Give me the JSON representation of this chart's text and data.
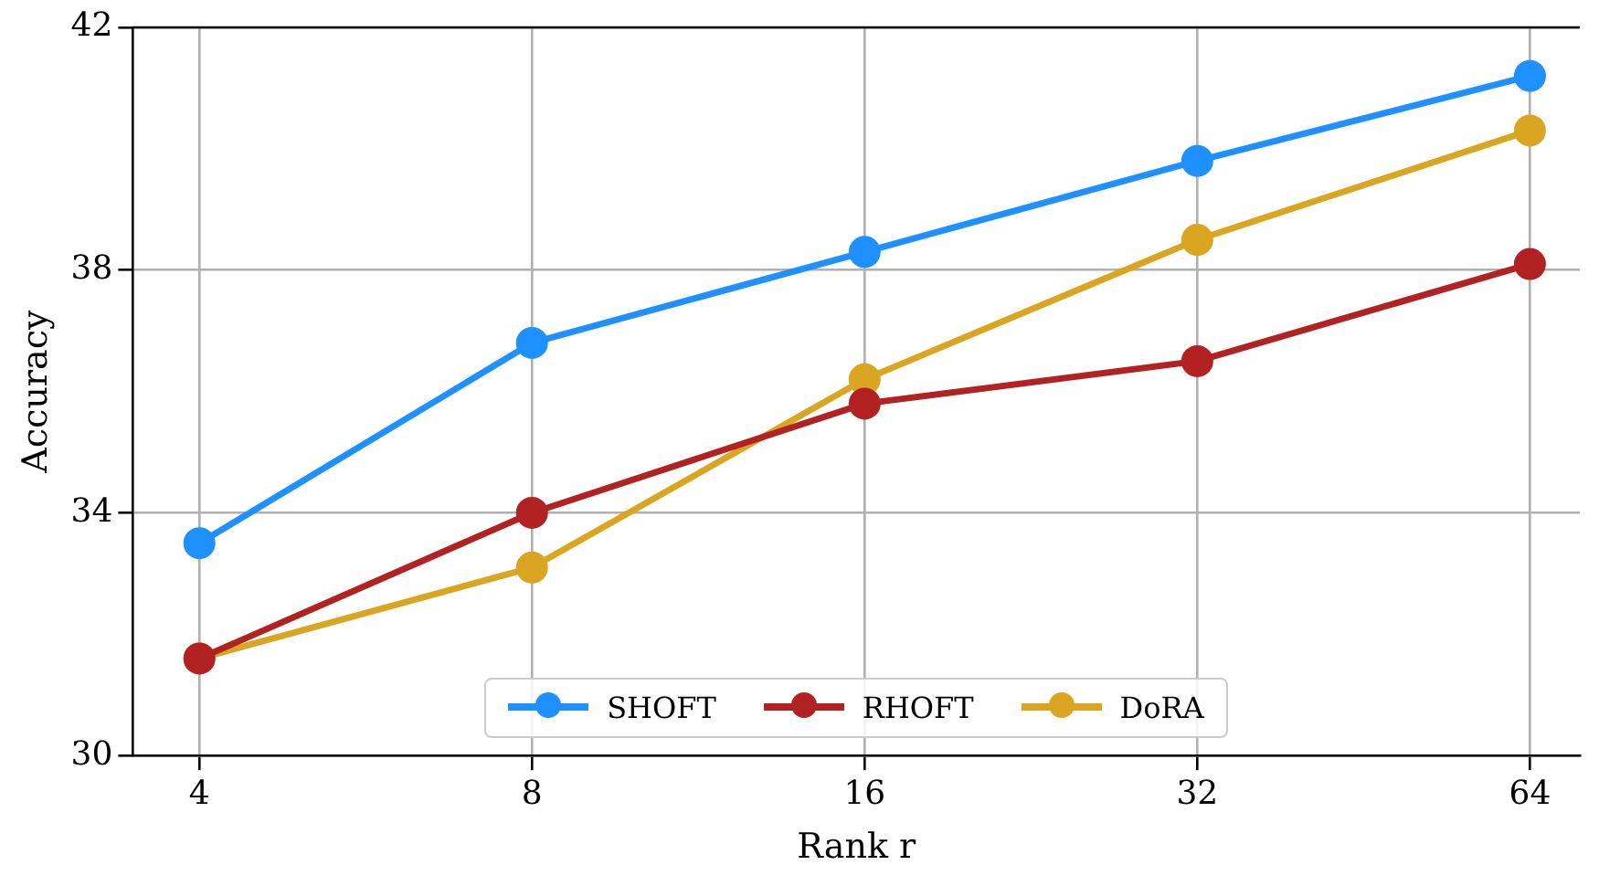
{
  "chart_data": {
    "type": "line",
    "xlabel": "Rank r",
    "ylabel": "Accuracy",
    "categories": [
      "4",
      "8",
      "16",
      "32",
      "64"
    ],
    "series": [
      {
        "name": "SHOFT",
        "color": "#1e90ff",
        "values": [
          33.5,
          36.8,
          38.3,
          39.8,
          41.2
        ]
      },
      {
        "name": "RHOFT",
        "color": "#b22222",
        "values": [
          31.6,
          34.0,
          35.8,
          36.5,
          38.1
        ]
      },
      {
        "name": "DoRA",
        "color": "#daa520",
        "values": [
          31.6,
          33.1,
          36.2,
          38.5,
          40.3
        ]
      }
    ],
    "ylim": [
      30,
      42
    ],
    "yticks": [
      30,
      34,
      38,
      42
    ],
    "grid": true,
    "legend": "bottom",
    "marker": "circle",
    "line_style": "solid"
  }
}
